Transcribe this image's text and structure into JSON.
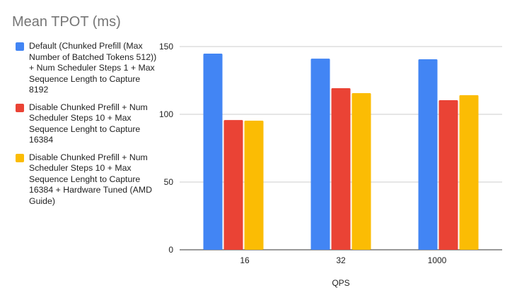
{
  "chart_data": {
    "type": "bar",
    "title": "Mean TPOT (ms)",
    "xlabel": "QPS",
    "ylabel": "",
    "categories": [
      "16",
      "32",
      "1000"
    ],
    "ylim": [
      0,
      150
    ],
    "yticks": [
      "0",
      "50",
      "100",
      "150"
    ],
    "grid": true,
    "legend_position": "left",
    "series": [
      {
        "name": "Default (Chunked Prefill (Max Number of Batched Tokens 512)) + Num Scheduler Steps 1 + Max Sequence Length to Capture 8192",
        "color": "#4285f4",
        "values": [
          144.8,
          141.1,
          140.6
        ]
      },
      {
        "name": "Disable Chunked Prefill + Num Scheduler Steps 10 + Max Sequence Lenght to Capture 16384",
        "color": "#ea4335",
        "values": [
          95.8,
          119.3,
          110.4
        ]
      },
      {
        "name": "Disable Chunked Prefill + Num Scheduler Steps 10 + Max Sequence Lenght to Capture 16384 + Hardware Tuned (AMD Guide)",
        "color": "#fbbc04",
        "values": [
          95.3,
          115.6,
          114.1
        ]
      }
    ]
  }
}
